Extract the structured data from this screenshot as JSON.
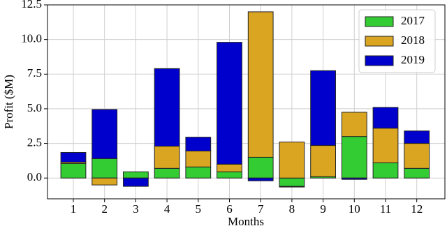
{
  "chart_data": {
    "type": "stacked_bar",
    "x_label": "Months",
    "y_label": "Profit ($M)",
    "categories": [
      "1",
      "2",
      "3",
      "4",
      "5",
      "6",
      "7",
      "8",
      "9",
      "10",
      "11",
      "12"
    ],
    "series": [
      {
        "name": "2017",
        "color": "#33cc33",
        "values": [
          1.05,
          1.4,
          0.45,
          0.7,
          0.8,
          0.45,
          1.5,
          -0.6,
          0.1,
          3.0,
          1.1,
          0.7
        ]
      },
      {
        "name": "2018",
        "color": "#daa520",
        "values": [
          0.1,
          -0.5,
          0,
          1.6,
          1.15,
          0.55,
          10.5,
          2.6,
          2.25,
          1.75,
          2.5,
          1.8
        ]
      },
      {
        "name": "2019",
        "color": "#0000cc",
        "values": [
          0.7,
          3.55,
          -0.6,
          5.6,
          1.0,
          8.8,
          -0.2,
          -0.05,
          5.4,
          -0.1,
          1.5,
          0.9
        ]
      }
    ],
    "ylim": [
      -1.5,
      12.5
    ],
    "yticks": [
      {
        "value": 0,
        "label": "0.0"
      },
      2.5,
      {
        "value": 5,
        "label": "5.0"
      },
      7.5,
      {
        "value": 10,
        "label": "10.0"
      },
      12.5
    ],
    "grid": true,
    "legend": "upper right"
  }
}
